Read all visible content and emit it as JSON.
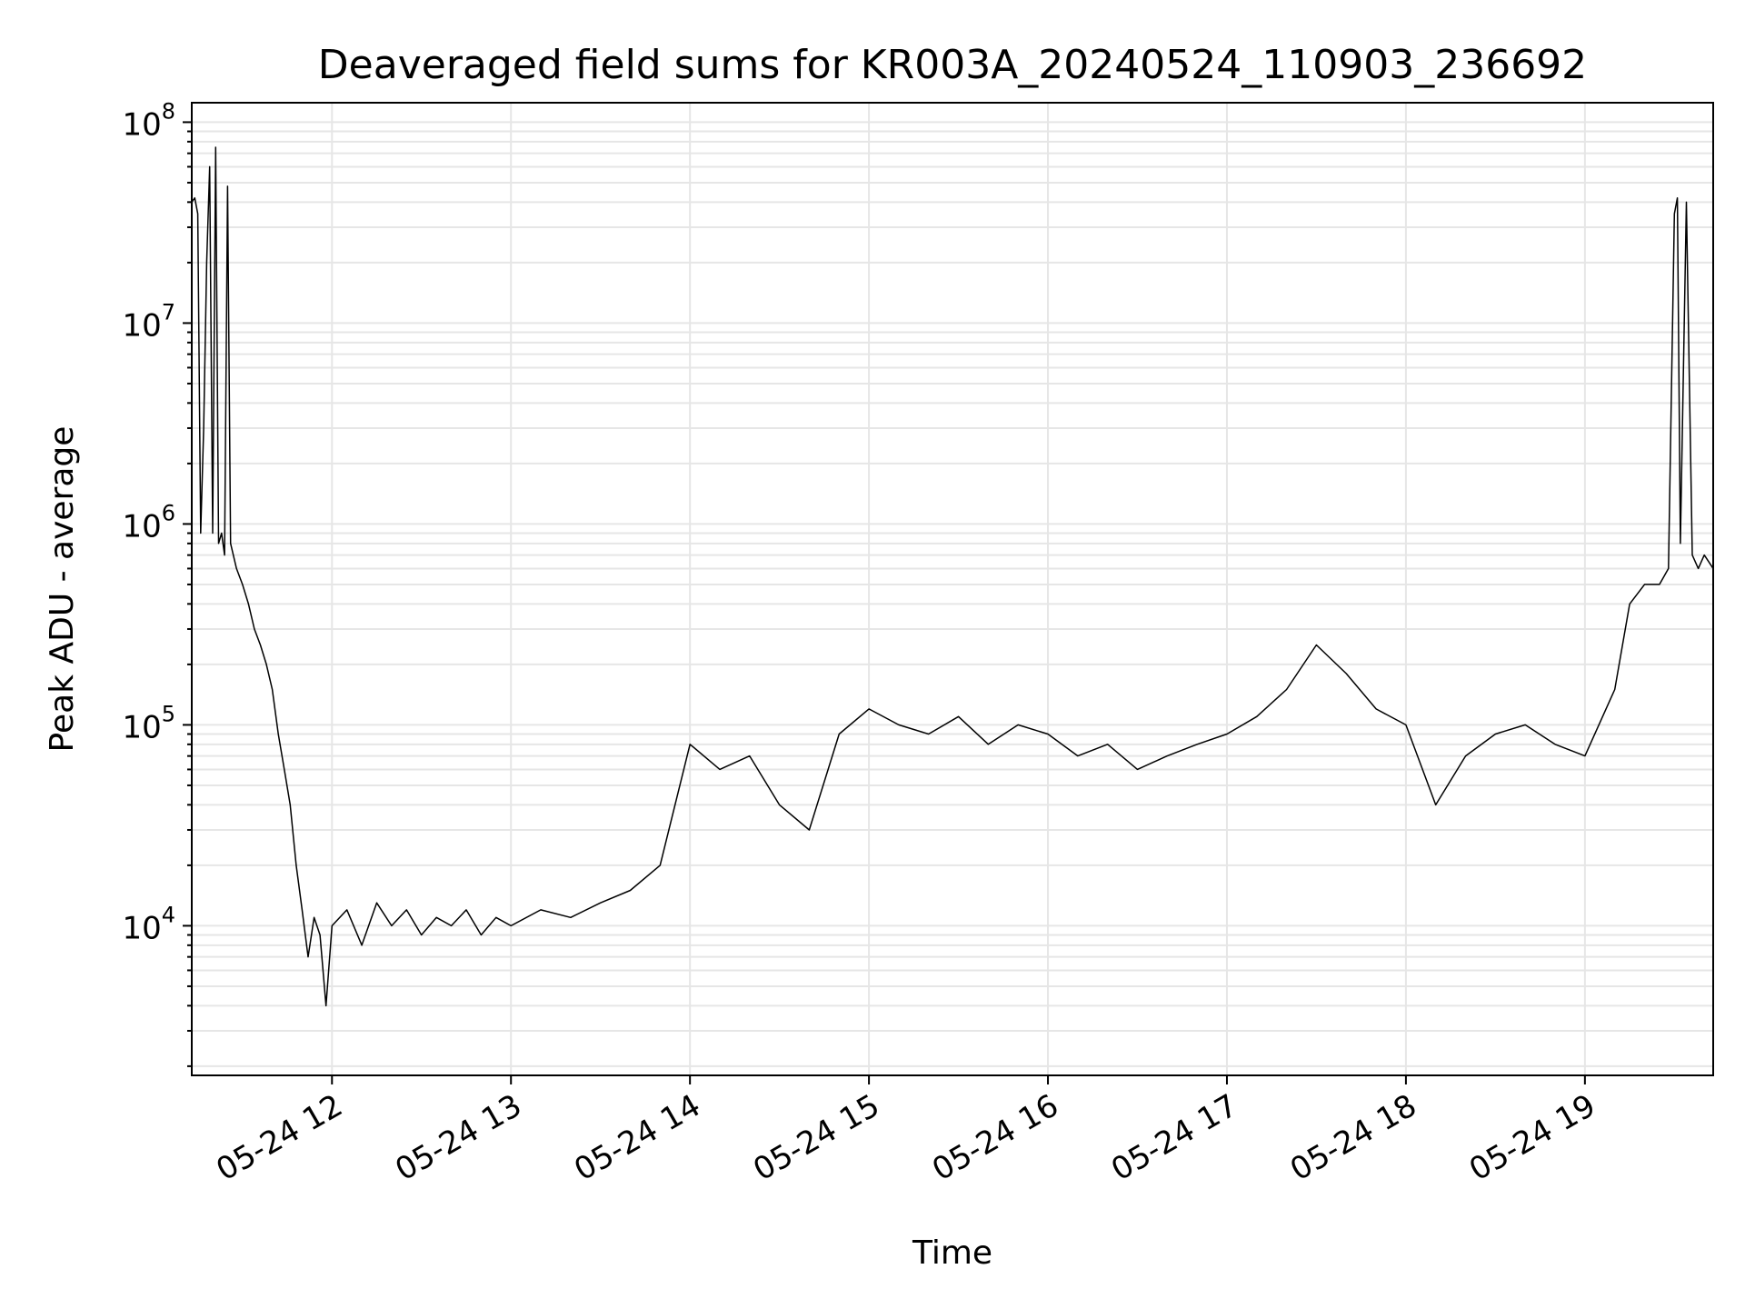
{
  "chart_data": {
    "type": "line",
    "title": "Deaveraged field sums for KR003A_20240524_110903_236692",
    "xlabel": "Time",
    "ylabel": "Peak ADU - average",
    "yscale": "log",
    "ylim": [
      1800,
      125000000
    ],
    "xlim": [
      "05-24 11:13",
      "05-24 19:43"
    ],
    "grid": true,
    "line_color": "#000000",
    "grid_color": "#e6e6e6",
    "x_ticks": [
      {
        "label": "05-24 12",
        "value": "05-24 12:00"
      },
      {
        "label": "05-24 13",
        "value": "05-24 13:00"
      },
      {
        "label": "05-24 14",
        "value": "05-24 14:00"
      },
      {
        "label": "05-24 15",
        "value": "05-24 15:00"
      },
      {
        "label": "05-24 16",
        "value": "05-24 16:00"
      },
      {
        "label": "05-24 17",
        "value": "05-24 17:00"
      },
      {
        "label": "05-24 18",
        "value": "05-24 18:00"
      },
      {
        "label": "05-24 19",
        "value": "05-24 19:00"
      }
    ],
    "y_ticks": [
      {
        "base": "10",
        "exp": "4",
        "value": 10000
      },
      {
        "base": "10",
        "exp": "5",
        "value": 100000
      },
      {
        "base": "10",
        "exp": "6",
        "value": 1000000
      },
      {
        "base": "10",
        "exp": "7",
        "value": 10000000
      },
      {
        "base": "10",
        "exp": "8",
        "value": 100000000
      }
    ],
    "series": [
      {
        "points": [
          [
            "05-24 11:13",
            40000000
          ],
          [
            "05-24 11:14",
            42000000
          ],
          [
            "05-24 11:15",
            35000000
          ],
          [
            "05-24 11:16",
            900000
          ],
          [
            "05-24 11:17",
            3000000
          ],
          [
            "05-24 11:18",
            20000000
          ],
          [
            "05-24 11:19",
            60000000
          ],
          [
            "05-24 11:20",
            900000
          ],
          [
            "05-24 11:21",
            75000000
          ],
          [
            "05-24 11:22",
            800000
          ],
          [
            "05-24 11:23",
            900000
          ],
          [
            "05-24 11:24",
            700000
          ],
          [
            "05-24 11:25",
            48000000
          ],
          [
            "05-24 11:26",
            800000
          ],
          [
            "05-24 11:28",
            600000
          ],
          [
            "05-24 11:30",
            500000
          ],
          [
            "05-24 11:32",
            400000
          ],
          [
            "05-24 11:34",
            300000
          ],
          [
            "05-24 11:36",
            250000
          ],
          [
            "05-24 11:38",
            200000
          ],
          [
            "05-24 11:40",
            150000
          ],
          [
            "05-24 11:42",
            90000
          ],
          [
            "05-24 11:44",
            60000
          ],
          [
            "05-24 11:46",
            40000
          ],
          [
            "05-24 11:48",
            20000
          ],
          [
            "05-24 11:50",
            12000
          ],
          [
            "05-24 11:52",
            7000
          ],
          [
            "05-24 11:54",
            11000
          ],
          [
            "05-24 11:56",
            9000
          ],
          [
            "05-24 11:58",
            4000
          ],
          [
            "05-24 12:00",
            10000
          ],
          [
            "05-24 12:05",
            12000
          ],
          [
            "05-24 12:10",
            8000
          ],
          [
            "05-24 12:15",
            13000
          ],
          [
            "05-24 12:20",
            10000
          ],
          [
            "05-24 12:25",
            12000
          ],
          [
            "05-24 12:30",
            9000
          ],
          [
            "05-24 12:35",
            11000
          ],
          [
            "05-24 12:40",
            10000
          ],
          [
            "05-24 12:45",
            12000
          ],
          [
            "05-24 12:50",
            9000
          ],
          [
            "05-24 12:55",
            11000
          ],
          [
            "05-24 13:00",
            10000
          ],
          [
            "05-24 13:10",
            12000
          ],
          [
            "05-24 13:20",
            11000
          ],
          [
            "05-24 13:30",
            13000
          ],
          [
            "05-24 13:40",
            15000
          ],
          [
            "05-24 13:50",
            20000
          ],
          [
            "05-24 14:00",
            80000
          ],
          [
            "05-24 14:10",
            60000
          ],
          [
            "05-24 14:20",
            70000
          ],
          [
            "05-24 14:30",
            40000
          ],
          [
            "05-24 14:40",
            30000
          ],
          [
            "05-24 14:50",
            90000
          ],
          [
            "05-24 15:00",
            120000
          ],
          [
            "05-24 15:10",
            100000
          ],
          [
            "05-24 15:20",
            90000
          ],
          [
            "05-24 15:30",
            110000
          ],
          [
            "05-24 15:40",
            80000
          ],
          [
            "05-24 15:50",
            100000
          ],
          [
            "05-24 16:00",
            90000
          ],
          [
            "05-24 16:10",
            70000
          ],
          [
            "05-24 16:20",
            80000
          ],
          [
            "05-24 16:30",
            60000
          ],
          [
            "05-24 16:40",
            70000
          ],
          [
            "05-24 16:50",
            80000
          ],
          [
            "05-24 17:00",
            90000
          ],
          [
            "05-24 17:10",
            110000
          ],
          [
            "05-24 17:20",
            150000
          ],
          [
            "05-24 17:30",
            250000
          ],
          [
            "05-24 17:40",
            180000
          ],
          [
            "05-24 17:50",
            120000
          ],
          [
            "05-24 18:00",
            100000
          ],
          [
            "05-24 18:10",
            40000
          ],
          [
            "05-24 18:20",
            70000
          ],
          [
            "05-24 18:30",
            90000
          ],
          [
            "05-24 18:40",
            100000
          ],
          [
            "05-24 18:50",
            80000
          ],
          [
            "05-24 19:00",
            70000
          ],
          [
            "05-24 19:10",
            150000
          ],
          [
            "05-24 19:15",
            400000
          ],
          [
            "05-24 19:20",
            500000
          ],
          [
            "05-24 19:25",
            500000
          ],
          [
            "05-24 19:28",
            600000
          ],
          [
            "05-24 19:30",
            35000000
          ],
          [
            "05-24 19:31",
            42000000
          ],
          [
            "05-24 19:32",
            800000
          ],
          [
            "05-24 19:34",
            40000000
          ],
          [
            "05-24 19:36",
            700000
          ],
          [
            "05-24 19:38",
            600000
          ],
          [
            "05-24 19:40",
            700000
          ],
          [
            "05-24 19:43",
            600000
          ]
        ]
      }
    ]
  }
}
